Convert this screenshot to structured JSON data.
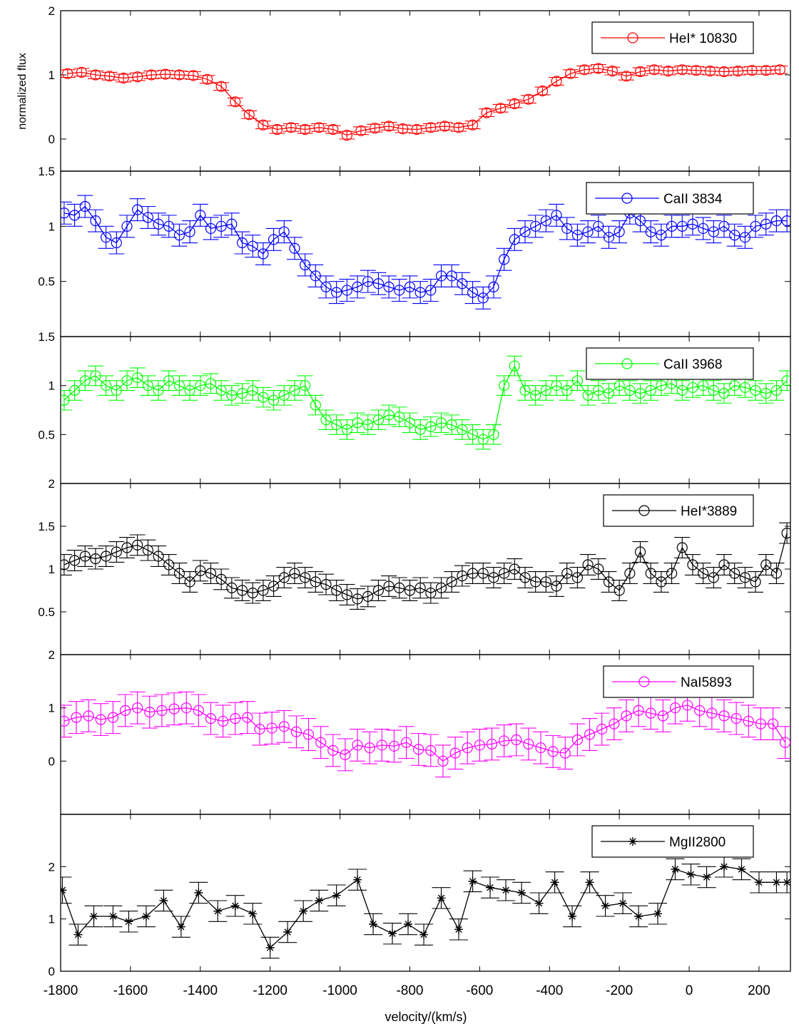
{
  "figure": {
    "ylabel": "normalized flux",
    "xlabel": "velocity/(km/s)",
    "xlim": [
      -1800,
      290
    ],
    "xticks": [
      -1800,
      -1600,
      -1400,
      -1200,
      -1000,
      -800,
      -600,
      -400,
      -200,
      0,
      200
    ]
  },
  "chart_data": [
    {
      "type": "line",
      "legend": "HeI* 10830",
      "color": "#ff0000",
      "marker": "circle",
      "ylim": [
        -0.5,
        2
      ],
      "yticks": [
        0,
        1,
        2
      ],
      "x": [
        -1780,
        -1740,
        -1700,
        -1660,
        -1620,
        -1580,
        -1540,
        -1500,
        -1460,
        -1420,
        -1380,
        -1340,
        -1300,
        -1260,
        -1220,
        -1180,
        -1140,
        -1100,
        -1060,
        -1020,
        -980,
        -940,
        -900,
        -860,
        -820,
        -780,
        -740,
        -700,
        -660,
        -620,
        -580,
        -540,
        -500,
        -460,
        -420,
        -380,
        -340,
        -300,
        -260,
        -220,
        -180,
        -140,
        -100,
        -60,
        -20,
        20,
        60,
        100,
        140,
        180,
        220,
        260
      ],
      "values": [
        1.02,
        1.04,
        1.0,
        0.98,
        0.95,
        0.97,
        1.0,
        1.01,
        1.0,
        0.99,
        0.93,
        0.82,
        0.58,
        0.38,
        0.22,
        0.15,
        0.18,
        0.15,
        0.18,
        0.15,
        0.06,
        0.13,
        0.17,
        0.2,
        0.16,
        0.15,
        0.18,
        0.2,
        0.18,
        0.22,
        0.41,
        0.48,
        0.55,
        0.62,
        0.75,
        0.9,
        1.02,
        1.08,
        1.1,
        1.06,
        0.98,
        1.05,
        1.08,
        1.06,
        1.08,
        1.07,
        1.06,
        1.05,
        1.06,
        1.07,
        1.07,
        1.08
      ],
      "errors": [
        0.06,
        0.06,
        0.06,
        0.06,
        0.06,
        0.06,
        0.06,
        0.06,
        0.06,
        0.06,
        0.06,
        0.06,
        0.06,
        0.06,
        0.06,
        0.06,
        0.06,
        0.06,
        0.06,
        0.06,
        0.06,
        0.06,
        0.06,
        0.06,
        0.06,
        0.06,
        0.06,
        0.06,
        0.06,
        0.06,
        0.06,
        0.06,
        0.06,
        0.06,
        0.06,
        0.06,
        0.06,
        0.06,
        0.06,
        0.06,
        0.06,
        0.06,
        0.06,
        0.06,
        0.06,
        0.06,
        0.06,
        0.06,
        0.06,
        0.06,
        0.06,
        0.06
      ]
    },
    {
      "type": "line",
      "legend": "CaII 3834",
      "color": "#0000ff",
      "marker": "circle",
      "ylim": [
        0,
        1.5
      ],
      "yticks": [
        0.5,
        1,
        1.5
      ],
      "x": [
        -1790,
        -1760,
        -1730,
        -1700,
        -1670,
        -1640,
        -1610,
        -1580,
        -1550,
        -1520,
        -1490,
        -1460,
        -1430,
        -1400,
        -1370,
        -1340,
        -1310,
        -1280,
        -1250,
        -1220,
        -1190,
        -1160,
        -1130,
        -1100,
        -1070,
        -1040,
        -1010,
        -980,
        -950,
        -920,
        -890,
        -860,
        -830,
        -800,
        -770,
        -740,
        -710,
        -680,
        -650,
        -620,
        -590,
        -560,
        -530,
        -500,
        -470,
        -440,
        -410,
        -380,
        -350,
        -320,
        -290,
        -260,
        -230,
        -200,
        -170,
        -140,
        -110,
        -80,
        -50,
        -20,
        10,
        40,
        70,
        100,
        130,
        160,
        190,
        220,
        250,
        280
      ],
      "values": [
        1.12,
        1.1,
        1.18,
        1.05,
        0.9,
        0.85,
        1.0,
        1.15,
        1.08,
        1.02,
        1.0,
        0.92,
        0.95,
        1.1,
        0.98,
        1.0,
        1.02,
        0.85,
        0.82,
        0.75,
        0.88,
        0.95,
        0.8,
        0.65,
        0.55,
        0.45,
        0.4,
        0.42,
        0.45,
        0.5,
        0.48,
        0.45,
        0.42,
        0.45,
        0.4,
        0.42,
        0.55,
        0.55,
        0.48,
        0.4,
        0.35,
        0.45,
        0.7,
        0.88,
        0.95,
        1.0,
        1.05,
        1.1,
        0.98,
        0.92,
        0.95,
        1.0,
        0.9,
        0.95,
        1.12,
        1.05,
        0.95,
        0.92,
        1.0,
        1.0,
        1.02,
        0.98,
        0.95,
        1.0,
        0.92,
        0.9,
        1.0,
        1.02,
        1.05,
        1.05
      ],
      "errors": [
        0.1,
        0.1,
        0.1,
        0.1,
        0.1,
        0.1,
        0.1,
        0.1,
        0.1,
        0.1,
        0.1,
        0.1,
        0.1,
        0.1,
        0.1,
        0.1,
        0.1,
        0.1,
        0.1,
        0.1,
        0.1,
        0.1,
        0.1,
        0.1,
        0.1,
        0.1,
        0.1,
        0.1,
        0.1,
        0.1,
        0.1,
        0.1,
        0.1,
        0.1,
        0.1,
        0.1,
        0.1,
        0.1,
        0.1,
        0.1,
        0.1,
        0.1,
        0.1,
        0.1,
        0.1,
        0.1,
        0.1,
        0.1,
        0.1,
        0.1,
        0.1,
        0.1,
        0.1,
        0.1,
        0.1,
        0.1,
        0.1,
        0.1,
        0.1,
        0.1,
        0.1,
        0.1,
        0.1,
        0.1,
        0.1,
        0.1,
        0.1,
        0.1,
        0.1,
        0.1
      ]
    },
    {
      "type": "line",
      "legend": "CaII 3968",
      "color": "#00ff00",
      "marker": "circle",
      "ylim": [
        0,
        1.5
      ],
      "yticks": [
        0.5,
        1,
        1.5
      ],
      "x": [
        -1790,
        -1760,
        -1730,
        -1700,
        -1670,
        -1640,
        -1610,
        -1580,
        -1550,
        -1520,
        -1490,
        -1460,
        -1430,
        -1400,
        -1370,
        -1340,
        -1310,
        -1280,
        -1250,
        -1220,
        -1190,
        -1160,
        -1130,
        -1100,
        -1070,
        -1040,
        -1010,
        -980,
        -950,
        -920,
        -890,
        -860,
        -830,
        -800,
        -770,
        -740,
        -710,
        -680,
        -650,
        -620,
        -590,
        -560,
        -530,
        -500,
        -470,
        -440,
        -410,
        -380,
        -350,
        -320,
        -290,
        -260,
        -230,
        -200,
        -170,
        -140,
        -110,
        -80,
        -50,
        -20,
        10,
        40,
        70,
        100,
        130,
        160,
        190,
        220,
        250,
        280
      ],
      "values": [
        0.85,
        0.95,
        1.05,
        1.1,
        1.0,
        0.95,
        1.05,
        1.08,
        1.0,
        0.95,
        1.05,
        1.0,
        0.95,
        1.0,
        1.02,
        0.95,
        0.9,
        0.92,
        0.95,
        0.88,
        0.85,
        0.9,
        0.95,
        1.0,
        0.8,
        0.65,
        0.6,
        0.55,
        0.62,
        0.6,
        0.65,
        0.7,
        0.68,
        0.62,
        0.55,
        0.58,
        0.62,
        0.6,
        0.55,
        0.5,
        0.45,
        0.5,
        1.0,
        1.2,
        0.95,
        0.9,
        0.95,
        1.0,
        0.95,
        1.05,
        0.9,
        0.95,
        0.92,
        1.0,
        0.95,
        0.92,
        0.95,
        1.0,
        1.02,
        0.95,
        0.98,
        1.0,
        0.95,
        0.92,
        1.0,
        0.98,
        0.95,
        0.92,
        0.95,
        1.05
      ],
      "errors": [
        0.1,
        0.1,
        0.1,
        0.1,
        0.1,
        0.1,
        0.1,
        0.1,
        0.1,
        0.1,
        0.1,
        0.1,
        0.1,
        0.1,
        0.1,
        0.1,
        0.1,
        0.1,
        0.1,
        0.1,
        0.1,
        0.1,
        0.1,
        0.1,
        0.1,
        0.1,
        0.1,
        0.1,
        0.1,
        0.1,
        0.1,
        0.1,
        0.1,
        0.1,
        0.1,
        0.1,
        0.1,
        0.1,
        0.1,
        0.1,
        0.1,
        0.1,
        0.1,
        0.1,
        0.1,
        0.1,
        0.1,
        0.1,
        0.1,
        0.1,
        0.1,
        0.1,
        0.1,
        0.1,
        0.1,
        0.1,
        0.1,
        0.1,
        0.1,
        0.1,
        0.1,
        0.1,
        0.1,
        0.1,
        0.1,
        0.1,
        0.1,
        0.1,
        0.1,
        0.1
      ]
    },
    {
      "type": "line",
      "legend": "HeI*3889",
      "color": "#000000",
      "marker": "circle",
      "ylim": [
        0,
        2
      ],
      "yticks": [
        0.5,
        1,
        1.5,
        2
      ],
      "x": [
        -1790,
        -1760,
        -1730,
        -1700,
        -1670,
        -1640,
        -1610,
        -1580,
        -1550,
        -1520,
        -1490,
        -1460,
        -1430,
        -1400,
        -1370,
        -1340,
        -1310,
        -1280,
        -1250,
        -1220,
        -1190,
        -1160,
        -1130,
        -1100,
        -1070,
        -1040,
        -1010,
        -980,
        -950,
        -920,
        -890,
        -860,
        -830,
        -800,
        -770,
        -740,
        -710,
        -680,
        -650,
        -620,
        -590,
        -560,
        -530,
        -500,
        -470,
        -440,
        -410,
        -380,
        -350,
        -320,
        -290,
        -260,
        -230,
        -200,
        -170,
        -140,
        -110,
        -80,
        -50,
        -20,
        10,
        40,
        70,
        100,
        130,
        160,
        190,
        220,
        250,
        280
      ],
      "values": [
        1.05,
        1.1,
        1.15,
        1.12,
        1.15,
        1.2,
        1.25,
        1.28,
        1.22,
        1.15,
        1.05,
        0.95,
        0.85,
        0.98,
        0.95,
        0.88,
        0.78,
        0.75,
        0.72,
        0.75,
        0.8,
        0.9,
        0.95,
        0.9,
        0.85,
        0.82,
        0.75,
        0.7,
        0.65,
        0.68,
        0.75,
        0.8,
        0.78,
        0.75,
        0.78,
        0.72,
        0.78,
        0.85,
        0.92,
        0.95,
        0.95,
        0.9,
        0.95,
        1.0,
        0.9,
        0.85,
        0.85,
        0.8,
        0.95,
        0.9,
        1.05,
        1.0,
        0.85,
        0.75,
        0.95,
        1.2,
        0.95,
        0.85,
        0.95,
        1.25,
        1.05,
        0.95,
        0.9,
        1.05,
        0.95,
        0.9,
        0.85,
        1.05,
        0.95,
        1.42
      ],
      "errors": [
        0.12,
        0.12,
        0.12,
        0.12,
        0.12,
        0.12,
        0.12,
        0.12,
        0.12,
        0.12,
        0.12,
        0.12,
        0.12,
        0.12,
        0.12,
        0.12,
        0.12,
        0.12,
        0.12,
        0.12,
        0.12,
        0.12,
        0.12,
        0.12,
        0.12,
        0.12,
        0.12,
        0.12,
        0.12,
        0.12,
        0.12,
        0.12,
        0.12,
        0.12,
        0.12,
        0.12,
        0.12,
        0.12,
        0.12,
        0.12,
        0.12,
        0.12,
        0.12,
        0.12,
        0.12,
        0.12,
        0.12,
        0.12,
        0.12,
        0.12,
        0.12,
        0.12,
        0.12,
        0.12,
        0.12,
        0.12,
        0.12,
        0.12,
        0.12,
        0.12,
        0.12,
        0.12,
        0.12,
        0.12,
        0.12,
        0.12,
        0.12,
        0.12,
        0.12,
        0.12
      ]
    },
    {
      "type": "line",
      "legend": "NaI5893",
      "color": "#ff00ff",
      "marker": "circle",
      "ylim": [
        -1,
        2
      ],
      "yticks": [
        0,
        1,
        2
      ],
      "x": [
        -1790,
        -1755,
        -1720,
        -1685,
        -1650,
        -1615,
        -1580,
        -1545,
        -1510,
        -1475,
        -1440,
        -1405,
        -1370,
        -1335,
        -1300,
        -1265,
        -1230,
        -1195,
        -1160,
        -1125,
        -1090,
        -1055,
        -1020,
        -985,
        -950,
        -915,
        -880,
        -845,
        -810,
        -775,
        -740,
        -705,
        -670,
        -635,
        -600,
        -565,
        -530,
        -495,
        -460,
        -425,
        -390,
        -355,
        -320,
        -285,
        -250,
        -215,
        -180,
        -145,
        -110,
        -75,
        -40,
        -5,
        30,
        65,
        100,
        135,
        170,
        205,
        240,
        275
      ],
      "values": [
        0.75,
        0.82,
        0.85,
        0.78,
        0.82,
        0.95,
        1.0,
        0.92,
        0.95,
        0.98,
        1.0,
        0.95,
        0.8,
        0.75,
        0.8,
        0.82,
        0.6,
        0.62,
        0.65,
        0.55,
        0.5,
        0.35,
        0.2,
        0.12,
        0.3,
        0.25,
        0.3,
        0.28,
        0.35,
        0.22,
        0.2,
        0.0,
        0.15,
        0.25,
        0.3,
        0.32,
        0.38,
        0.4,
        0.32,
        0.25,
        0.18,
        0.15,
        0.4,
        0.5,
        0.6,
        0.7,
        0.85,
        0.95,
        0.9,
        0.85,
        1.0,
        1.05,
        0.95,
        0.9,
        0.85,
        0.8,
        0.75,
        0.7,
        0.7,
        0.35
      ],
      "errors": [
        0.3,
        0.3,
        0.3,
        0.3,
        0.3,
        0.3,
        0.3,
        0.3,
        0.3,
        0.3,
        0.3,
        0.3,
        0.3,
        0.3,
        0.3,
        0.3,
        0.3,
        0.3,
        0.3,
        0.3,
        0.3,
        0.3,
        0.3,
        0.3,
        0.3,
        0.3,
        0.3,
        0.3,
        0.3,
        0.3,
        0.3,
        0.3,
        0.3,
        0.3,
        0.3,
        0.3,
        0.3,
        0.3,
        0.3,
        0.3,
        0.3,
        0.3,
        0.3,
        0.3,
        0.3,
        0.3,
        0.3,
        0.3,
        0.3,
        0.3,
        0.3,
        0.3,
        0.3,
        0.3,
        0.3,
        0.3,
        0.3,
        0.3,
        0.3,
        0.3
      ]
    },
    {
      "type": "line",
      "legend": "MgII2800",
      "color": "#000000",
      "marker": "star",
      "ylim": [
        0,
        3
      ],
      "yticks": [
        0,
        1,
        2
      ],
      "x": [
        -1795,
        -1750,
        -1705,
        -1650,
        -1605,
        -1555,
        -1505,
        -1455,
        -1405,
        -1350,
        -1300,
        -1250,
        -1200,
        -1150,
        -1105,
        -1060,
        -1010,
        -950,
        -905,
        -850,
        -805,
        -760,
        -710,
        -660,
        -620,
        -570,
        -525,
        -480,
        -430,
        -385,
        -335,
        -285,
        -240,
        -190,
        -145,
        -90,
        -40,
        5,
        50,
        100,
        150,
        200,
        250,
        280
      ],
      "values": [
        1.55,
        0.7,
        1.05,
        1.05,
        0.95,
        1.05,
        1.35,
        0.85,
        1.5,
        1.15,
        1.25,
        1.1,
        0.45,
        0.75,
        1.15,
        1.35,
        1.45,
        1.75,
        0.9,
        0.72,
        0.9,
        0.7,
        1.4,
        0.8,
        1.72,
        1.6,
        1.55,
        1.5,
        1.3,
        1.7,
        1.05,
        1.7,
        1.25,
        1.3,
        1.05,
        1.1,
        1.95,
        1.85,
        1.8,
        2.0,
        1.95,
        1.7,
        1.7,
        1.7
      ],
      "errors": [
        0.25,
        0.2,
        0.2,
        0.2,
        0.2,
        0.2,
        0.2,
        0.2,
        0.2,
        0.2,
        0.2,
        0.2,
        0.2,
        0.2,
        0.2,
        0.2,
        0.2,
        0.2,
        0.2,
        0.2,
        0.2,
        0.2,
        0.2,
        0.2,
        0.2,
        0.2,
        0.2,
        0.2,
        0.2,
        0.2,
        0.2,
        0.2,
        0.2,
        0.2,
        0.2,
        0.2,
        0.2,
        0.2,
        0.2,
        0.2,
        0.2,
        0.2,
        0.2,
        0.2
      ]
    }
  ]
}
